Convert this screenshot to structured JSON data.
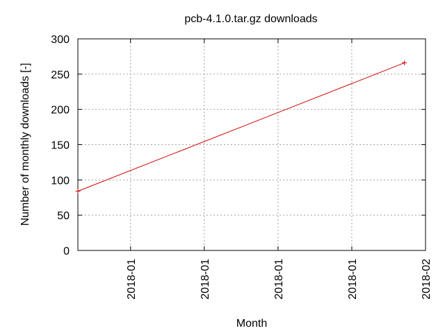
{
  "chart_data": {
    "type": "line",
    "title": "pcb-4.1.0.tar.gz downloads",
    "xlabel": "Month",
    "ylabel": "Number of monthly downloads [-]",
    "ylim": [
      0,
      300
    ],
    "yticks": [
      0,
      50,
      100,
      150,
      200,
      250,
      300
    ],
    "xlim": [
      0,
      1
    ],
    "xticks": [
      {
        "label": "2018-01",
        "x": 0.1515
      },
      {
        "label": "2018-01",
        "x": 0.3636
      },
      {
        "label": "2018-01",
        "x": 0.5758
      },
      {
        "label": "2018-01",
        "x": 0.7879
      },
      {
        "label": "2018-02",
        "x": 1.0
      }
    ],
    "grid": true,
    "series": [
      {
        "color": "#cc0000",
        "points": [
          {
            "x": 0.0,
            "y": 84
          },
          {
            "x": 0.9394,
            "y": 266
          }
        ]
      }
    ]
  }
}
